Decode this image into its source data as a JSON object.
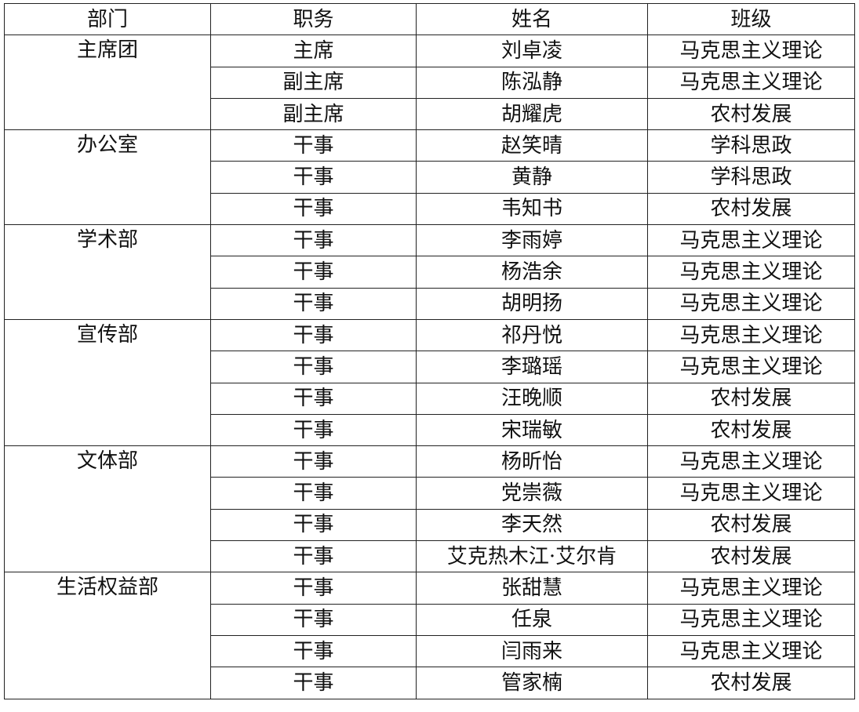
{
  "headers": [
    "部门",
    "职务",
    "姓名",
    "班级"
  ],
  "departments": [
    {
      "name": "主席团",
      "members": [
        {
          "role": "主席",
          "name": "刘卓凌",
          "class": "马克思主义理论"
        },
        {
          "role": "副主席",
          "name": "陈泓静",
          "class": "马克思主义理论"
        },
        {
          "role": "副主席",
          "name": "胡耀虎",
          "class": "农村发展"
        }
      ]
    },
    {
      "name": "办公室",
      "members": [
        {
          "role": "干事",
          "name": "赵笑晴",
          "class": "学科思政"
        },
        {
          "role": "干事",
          "name": "黄静",
          "class": "学科思政"
        },
        {
          "role": "干事",
          "name": "韦知书",
          "class": "农村发展"
        }
      ]
    },
    {
      "name": "学术部",
      "members": [
        {
          "role": "干事",
          "name": "李雨婷",
          "class": "马克思主义理论"
        },
        {
          "role": "干事",
          "name": "杨浩余",
          "class": "马克思主义理论"
        },
        {
          "role": "干事",
          "name": "胡明扬",
          "class": "马克思主义理论"
        }
      ]
    },
    {
      "name": "宣传部",
      "members": [
        {
          "role": "干事",
          "name": "祁丹悦",
          "class": "马克思主义理论"
        },
        {
          "role": "干事",
          "name": "李璐瑶",
          "class": "马克思主义理论"
        },
        {
          "role": "干事",
          "name": "汪晚顺",
          "class": "农村发展"
        },
        {
          "role": "干事",
          "name": "宋瑞敏",
          "class": "农村发展"
        }
      ]
    },
    {
      "name": "文体部",
      "members": [
        {
          "role": "干事",
          "name": "杨昕怡",
          "class": "马克思主义理论"
        },
        {
          "role": "干事",
          "name": "党崇薇",
          "class": "马克思主义理论"
        },
        {
          "role": "干事",
          "name": "李天然",
          "class": "农村发展"
        },
        {
          "role": "干事",
          "name": "艾克热木江·艾尔肯",
          "class": "农村发展"
        }
      ]
    },
    {
      "name": "生活权益部",
      "members": [
        {
          "role": "干事",
          "name": "张甜慧",
          "class": "马克思主义理论"
        },
        {
          "role": "干事",
          "name": "任泉",
          "class": "马克思主义理论"
        },
        {
          "role": "干事",
          "name": "闫雨来",
          "class": "马克思主义理论"
        },
        {
          "role": "干事",
          "name": "管家楠",
          "class": "农村发展"
        }
      ]
    }
  ]
}
